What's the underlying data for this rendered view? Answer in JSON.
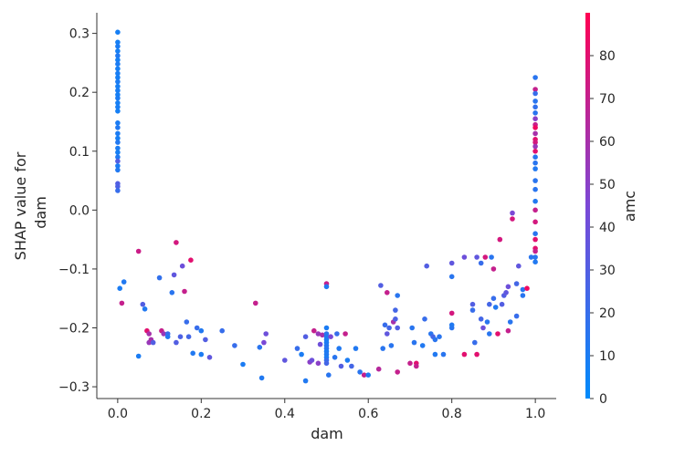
{
  "chart_data": {
    "type": "scatter",
    "xlabel": "dam",
    "ylabel_lines": [
      "SHAP value for",
      "dam"
    ],
    "colorbar_label": "amc",
    "xlim": [
      -0.05,
      1.05
    ],
    "ylim": [
      -0.32,
      0.335
    ],
    "xticks": [
      0.0,
      0.2,
      0.4,
      0.6,
      0.8,
      1.0
    ],
    "xtick_labels": [
      "0.0",
      "0.2",
      "0.4",
      "0.6",
      "0.8",
      "1.0"
    ],
    "yticks": [
      -0.3,
      -0.2,
      -0.1,
      0.0,
      0.1,
      0.2,
      0.3
    ],
    "ytick_labels": [
      "−0.3",
      "−0.2",
      "−0.1",
      "0.0",
      "0.1",
      "0.2",
      "0.3"
    ],
    "color_range": [
      0,
      90
    ],
    "colorbar_ticks": [
      0,
      10,
      20,
      30,
      40,
      50,
      60,
      70,
      80
    ],
    "colorbar_tick_labels": [
      "0",
      "10",
      "20",
      "30",
      "40",
      "50",
      "60",
      "70",
      "80"
    ],
    "colors": {
      "low": "#008bfb",
      "mid": "#7b48d6",
      "high": "#ff0052"
    },
    "grid": false,
    "points": [
      [
        0.0,
        0.302,
        8
      ],
      [
        0.0,
        0.285,
        8
      ],
      [
        0.0,
        0.278,
        10
      ],
      [
        0.0,
        0.27,
        8
      ],
      [
        0.0,
        0.262,
        12
      ],
      [
        0.0,
        0.255,
        8
      ],
      [
        0.0,
        0.248,
        10
      ],
      [
        0.0,
        0.24,
        8
      ],
      [
        0.0,
        0.232,
        9
      ],
      [
        0.0,
        0.225,
        8
      ],
      [
        0.0,
        0.218,
        10
      ],
      [
        0.0,
        0.21,
        8
      ],
      [
        0.0,
        0.203,
        9
      ],
      [
        0.0,
        0.196,
        8
      ],
      [
        0.0,
        0.19,
        10
      ],
      [
        0.0,
        0.182,
        8
      ],
      [
        0.0,
        0.175,
        9
      ],
      [
        0.0,
        0.168,
        8
      ],
      [
        0.0,
        0.148,
        10
      ],
      [
        0.0,
        0.14,
        12
      ],
      [
        0.0,
        0.13,
        10
      ],
      [
        0.0,
        0.122,
        8
      ],
      [
        0.0,
        0.115,
        12
      ],
      [
        0.0,
        0.105,
        10
      ],
      [
        0.0,
        0.098,
        8
      ],
      [
        0.0,
        0.09,
        12
      ],
      [
        0.0,
        0.083,
        30
      ],
      [
        0.0,
        0.075,
        10
      ],
      [
        0.0,
        0.068,
        12
      ],
      [
        0.0,
        0.045,
        30
      ],
      [
        0.0,
        0.04,
        28
      ],
      [
        0.0,
        0.033,
        20
      ],
      [
        0.005,
        -0.133,
        10
      ],
      [
        0.01,
        -0.158,
        70
      ],
      [
        0.015,
        -0.122,
        12
      ],
      [
        0.05,
        -0.07,
        72
      ],
      [
        0.05,
        -0.248,
        10
      ],
      [
        0.06,
        -0.16,
        30
      ],
      [
        0.065,
        -0.168,
        12
      ],
      [
        0.07,
        -0.205,
        80
      ],
      [
        0.075,
        -0.21,
        60
      ],
      [
        0.075,
        -0.225,
        55
      ],
      [
        0.08,
        -0.22,
        60
      ],
      [
        0.085,
        -0.225,
        30
      ],
      [
        0.1,
        -0.115,
        18
      ],
      [
        0.105,
        -0.205,
        70
      ],
      [
        0.11,
        -0.21,
        55
      ],
      [
        0.12,
        -0.21,
        20
      ],
      [
        0.12,
        -0.215,
        12
      ],
      [
        0.13,
        -0.14,
        15
      ],
      [
        0.135,
        -0.11,
        35
      ],
      [
        0.14,
        -0.055,
        75
      ],
      [
        0.14,
        -0.225,
        30
      ],
      [
        0.15,
        -0.215,
        28
      ],
      [
        0.155,
        -0.095,
        40
      ],
      [
        0.16,
        -0.138,
        70
      ],
      [
        0.165,
        -0.19,
        20
      ],
      [
        0.17,
        -0.215,
        25
      ],
      [
        0.175,
        -0.085,
        80
      ],
      [
        0.18,
        -0.243,
        12
      ],
      [
        0.19,
        -0.2,
        20
      ],
      [
        0.2,
        -0.205,
        12
      ],
      [
        0.2,
        -0.245,
        10
      ],
      [
        0.21,
        -0.22,
        30
      ],
      [
        0.22,
        -0.25,
        35
      ],
      [
        0.25,
        -0.205,
        20
      ],
      [
        0.28,
        -0.23,
        20
      ],
      [
        0.3,
        -0.262,
        10
      ],
      [
        0.33,
        -0.158,
        70
      ],
      [
        0.34,
        -0.233,
        15
      ],
      [
        0.345,
        -0.285,
        12
      ],
      [
        0.35,
        -0.225,
        45
      ],
      [
        0.355,
        -0.21,
        40
      ],
      [
        0.4,
        -0.255,
        35
      ],
      [
        0.43,
        -0.235,
        20
      ],
      [
        0.44,
        -0.245,
        10
      ],
      [
        0.45,
        -0.215,
        30
      ],
      [
        0.45,
        -0.29,
        12
      ],
      [
        0.46,
        -0.258,
        50
      ],
      [
        0.465,
        -0.255,
        40
      ],
      [
        0.47,
        -0.205,
        70
      ],
      [
        0.48,
        -0.21,
        55
      ],
      [
        0.48,
        -0.26,
        50
      ],
      [
        0.485,
        -0.228,
        40
      ],
      [
        0.49,
        -0.212,
        60
      ],
      [
        0.5,
        -0.125,
        70
      ],
      [
        0.5,
        -0.13,
        12
      ],
      [
        0.5,
        -0.2,
        10
      ],
      [
        0.5,
        -0.21,
        15
      ],
      [
        0.5,
        -0.215,
        12
      ],
      [
        0.5,
        -0.22,
        10
      ],
      [
        0.5,
        -0.225,
        10
      ],
      [
        0.5,
        -0.23,
        12
      ],
      [
        0.5,
        -0.235,
        15
      ],
      [
        0.5,
        -0.24,
        10
      ],
      [
        0.5,
        -0.245,
        12
      ],
      [
        0.5,
        -0.25,
        10
      ],
      [
        0.5,
        -0.255,
        20
      ],
      [
        0.5,
        -0.26,
        25
      ],
      [
        0.505,
        -0.28,
        15
      ],
      [
        0.51,
        -0.215,
        45
      ],
      [
        0.52,
        -0.25,
        15
      ],
      [
        0.525,
        -0.21,
        20
      ],
      [
        0.53,
        -0.235,
        12
      ],
      [
        0.535,
        -0.265,
        30
      ],
      [
        0.545,
        -0.21,
        70
      ],
      [
        0.55,
        -0.255,
        10
      ],
      [
        0.56,
        -0.265,
        25
      ],
      [
        0.57,
        -0.235,
        12
      ],
      [
        0.58,
        -0.275,
        15
      ],
      [
        0.59,
        -0.28,
        70
      ],
      [
        0.6,
        -0.28,
        12
      ],
      [
        0.625,
        -0.27,
        65
      ],
      [
        0.63,
        -0.128,
        30
      ],
      [
        0.635,
        -0.235,
        15
      ],
      [
        0.64,
        -0.195,
        20
      ],
      [
        0.645,
        -0.14,
        70
      ],
      [
        0.645,
        -0.21,
        35
      ],
      [
        0.65,
        -0.2,
        25
      ],
      [
        0.655,
        -0.23,
        15
      ],
      [
        0.66,
        -0.19,
        60
      ],
      [
        0.665,
        -0.17,
        25
      ],
      [
        0.665,
        -0.185,
        28
      ],
      [
        0.67,
        -0.145,
        15
      ],
      [
        0.67,
        -0.2,
        30
      ],
      [
        0.67,
        -0.275,
        70
      ],
      [
        0.7,
        -0.26,
        70
      ],
      [
        0.705,
        -0.2,
        15
      ],
      [
        0.71,
        -0.225,
        15
      ],
      [
        0.715,
        -0.26,
        80
      ],
      [
        0.715,
        -0.265,
        70
      ],
      [
        0.73,
        -0.23,
        12
      ],
      [
        0.735,
        -0.185,
        20
      ],
      [
        0.74,
        -0.095,
        30
      ],
      [
        0.75,
        -0.21,
        15
      ],
      [
        0.755,
        -0.215,
        25
      ],
      [
        0.76,
        -0.245,
        12
      ],
      [
        0.76,
        -0.22,
        15
      ],
      [
        0.77,
        -0.215,
        15
      ],
      [
        0.78,
        -0.245,
        15
      ],
      [
        0.8,
        -0.2,
        15
      ],
      [
        0.8,
        -0.195,
        12
      ],
      [
        0.8,
        -0.113,
        15
      ],
      [
        0.8,
        -0.09,
        35
      ],
      [
        0.8,
        -0.175,
        75
      ],
      [
        0.83,
        -0.245,
        80
      ],
      [
        0.83,
        -0.08,
        40
      ],
      [
        0.85,
        -0.16,
        30
      ],
      [
        0.85,
        -0.17,
        20
      ],
      [
        0.855,
        -0.225,
        20
      ],
      [
        0.86,
        -0.08,
        35
      ],
      [
        0.86,
        -0.245,
        80
      ],
      [
        0.87,
        -0.09,
        20
      ],
      [
        0.87,
        -0.185,
        25
      ],
      [
        0.875,
        -0.2,
        40
      ],
      [
        0.88,
        -0.08,
        75
      ],
      [
        0.885,
        -0.19,
        15
      ],
      [
        0.89,
        -0.16,
        25
      ],
      [
        0.89,
        -0.21,
        15
      ],
      [
        0.895,
        -0.08,
        15
      ],
      [
        0.9,
        -0.1,
        70
      ],
      [
        0.9,
        -0.15,
        20
      ],
      [
        0.905,
        -0.165,
        12
      ],
      [
        0.91,
        -0.21,
        80
      ],
      [
        0.915,
        -0.05,
        75
      ],
      [
        0.92,
        -0.16,
        30
      ],
      [
        0.925,
        -0.145,
        30
      ],
      [
        0.93,
        -0.14,
        35
      ],
      [
        0.935,
        -0.13,
        40
      ],
      [
        0.935,
        -0.205,
        70
      ],
      [
        0.94,
        -0.19,
        15
      ],
      [
        0.945,
        -0.005,
        45
      ],
      [
        0.945,
        -0.015,
        75
      ],
      [
        0.955,
        -0.125,
        25
      ],
      [
        0.955,
        -0.18,
        20
      ],
      [
        0.96,
        -0.095,
        35
      ],
      [
        0.97,
        -0.135,
        15
      ],
      [
        0.97,
        -0.145,
        15
      ],
      [
        0.98,
        -0.133,
        85
      ],
      [
        0.99,
        -0.08,
        15
      ],
      [
        1.0,
        0.225,
        15
      ],
      [
        1.0,
        0.205,
        70
      ],
      [
        1.0,
        0.198,
        20
      ],
      [
        1.0,
        0.185,
        15
      ],
      [
        1.0,
        0.175,
        18
      ],
      [
        1.0,
        0.165,
        15
      ],
      [
        1.0,
        0.155,
        50
      ],
      [
        1.0,
        0.145,
        70
      ],
      [
        1.0,
        0.14,
        85
      ],
      [
        1.0,
        0.13,
        60
      ],
      [
        1.0,
        0.12,
        80
      ],
      [
        1.0,
        0.115,
        75
      ],
      [
        1.0,
        0.108,
        55
      ],
      [
        1.0,
        0.1,
        80
      ],
      [
        1.0,
        0.09,
        15
      ],
      [
        1.0,
        0.08,
        15
      ],
      [
        1.0,
        0.07,
        12
      ],
      [
        1.0,
        0.05,
        15
      ],
      [
        1.0,
        0.035,
        15
      ],
      [
        1.0,
        0.015,
        12
      ],
      [
        1.0,
        0.0,
        70
      ],
      [
        1.0,
        -0.02,
        75
      ],
      [
        1.0,
        -0.04,
        15
      ],
      [
        1.0,
        -0.05,
        80
      ],
      [
        1.0,
        -0.065,
        80
      ],
      [
        1.0,
        -0.07,
        70
      ],
      [
        1.0,
        -0.08,
        15
      ],
      [
        1.0,
        -0.088,
        12
      ]
    ]
  }
}
